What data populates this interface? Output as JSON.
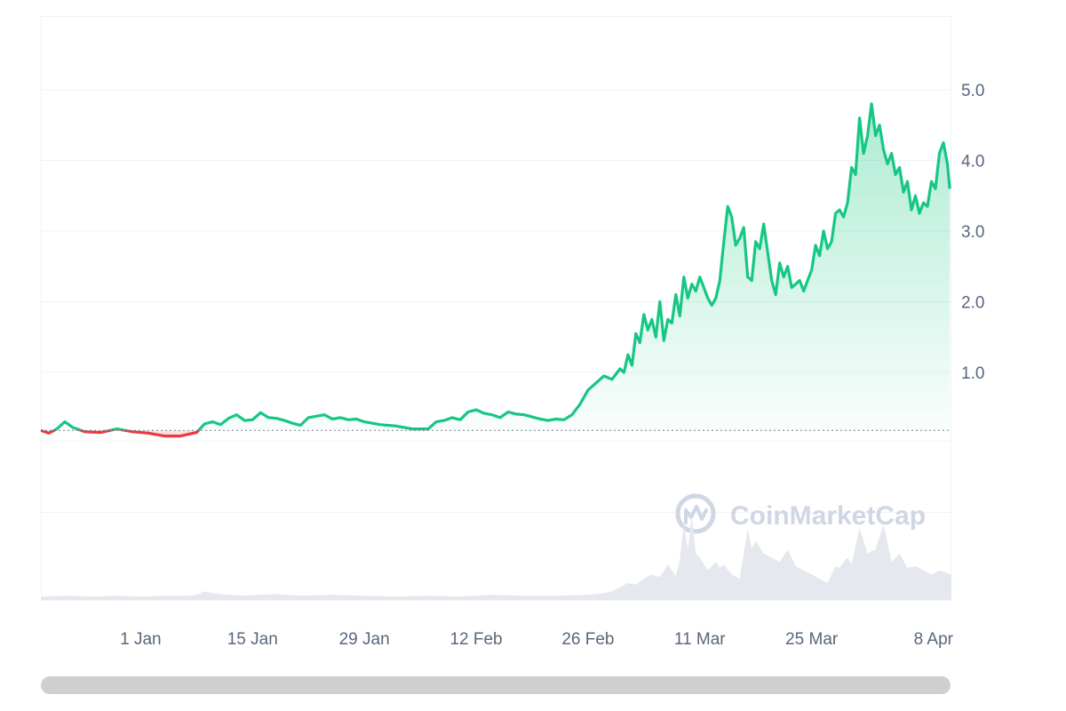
{
  "watermark": {
    "text": "CoinMarketCap",
    "icon": "coinmarketcap-logo-icon"
  },
  "colors": {
    "up": "#16c784",
    "down": "#ea3943",
    "grid": "#eff2f5",
    "baseline": "#58667e",
    "volume": "#e5e8ee",
    "tick_text": "#58667e"
  },
  "chart_data": {
    "type": "area",
    "y_ticks": [
      "1.0",
      "2.0",
      "3.0",
      "4.0",
      "5.0"
    ],
    "x_ticks": [
      "1 Jan",
      "15 Jan",
      "29 Jan",
      "12 Feb",
      "26 Feb",
      "11 Mar",
      "25 Mar",
      "8 Apr"
    ],
    "ylim": [
      -0.2,
      6.0
    ],
    "baseline": 0.18,
    "x_domain_days": [
      -12.5,
      101.5
    ],
    "y_axis_position": "right",
    "grid": "horizontal",
    "price_series": {
      "x_days": [
        -12.5,
        -11.5,
        -10.5,
        -9.5,
        -8.5,
        -7,
        -5,
        -3,
        -1,
        1,
        3,
        5,
        7,
        8,
        9,
        10,
        11,
        12,
        13,
        14,
        15,
        16,
        17,
        18,
        19,
        20,
        21,
        22,
        23,
        24,
        25,
        26,
        27,
        28,
        29,
        30,
        31,
        32,
        33,
        34,
        35,
        36,
        37,
        38,
        39,
        40,
        41,
        42,
        43,
        44,
        45,
        46,
        47,
        48,
        49,
        50,
        51,
        52,
        53,
        54,
        55,
        56,
        57,
        58,
        59,
        60,
        60.5,
        61,
        61.5,
        62,
        62.5,
        63,
        63.5,
        64,
        64.5,
        65,
        65.5,
        66,
        66.5,
        67,
        67.5,
        68,
        68.5,
        69,
        69.5,
        70,
        70.5,
        71,
        71.5,
        72,
        72.5,
        73,
        73.5,
        74,
        74.5,
        75,
        75.5,
        76,
        76.5,
        77,
        77.5,
        78,
        78.5,
        79,
        79.5,
        80,
        80.5,
        81,
        81.5,
        82,
        82.5,
        83,
        83.5,
        84,
        84.5,
        85,
        85.5,
        86,
        86.5,
        87,
        87.5,
        88,
        88.5,
        89,
        89.5,
        90,
        90.5,
        91,
        91.5,
        92,
        92.5,
        93,
        93.5,
        94,
        94.5,
        95,
        95.5,
        96,
        96.5,
        97,
        97.5,
        98,
        98.5,
        99,
        99.5,
        100,
        100.5,
        101,
        101.3
      ],
      "price": [
        0.18,
        0.14,
        0.2,
        0.3,
        0.22,
        0.16,
        0.15,
        0.2,
        0.16,
        0.14,
        0.1,
        0.1,
        0.15,
        0.27,
        0.3,
        0.26,
        0.35,
        0.4,
        0.32,
        0.33,
        0.43,
        0.36,
        0.35,
        0.32,
        0.28,
        0.25,
        0.36,
        0.38,
        0.4,
        0.34,
        0.36,
        0.33,
        0.34,
        0.3,
        0.28,
        0.26,
        0.25,
        0.24,
        0.22,
        0.2,
        0.2,
        0.2,
        0.3,
        0.32,
        0.36,
        0.33,
        0.44,
        0.47,
        0.42,
        0.4,
        0.36,
        0.44,
        0.41,
        0.4,
        0.37,
        0.34,
        0.32,
        0.34,
        0.33,
        0.4,
        0.55,
        0.75,
        0.85,
        0.95,
        0.9,
        1.05,
        1.0,
        1.25,
        1.1,
        1.55,
        1.42,
        1.82,
        1.6,
        1.75,
        1.5,
        2.0,
        1.45,
        1.75,
        1.7,
        2.1,
        1.8,
        2.35,
        2.05,
        2.25,
        2.15,
        2.35,
        2.2,
        2.05,
        1.95,
        2.05,
        2.3,
        2.85,
        3.35,
        3.2,
        2.8,
        2.9,
        3.05,
        2.35,
        2.3,
        2.85,
        2.75,
        3.1,
        2.7,
        2.3,
        2.1,
        2.55,
        2.35,
        2.5,
        2.2,
        2.25,
        2.3,
        2.15,
        2.3,
        2.45,
        2.8,
        2.65,
        3.0,
        2.75,
        2.85,
        3.25,
        3.3,
        3.2,
        3.4,
        3.9,
        3.8,
        4.6,
        4.1,
        4.35,
        4.8,
        4.35,
        4.5,
        4.15,
        3.95,
        4.1,
        3.8,
        3.9,
        3.55,
        3.7,
        3.3,
        3.5,
        3.25,
        3.4,
        3.35,
        3.7,
        3.6,
        4.1,
        4.25,
        3.95,
        3.6,
        3.5
      ]
    },
    "volume_series": {
      "x_days": [
        -12.5,
        -9,
        -6,
        -3,
        0,
        3,
        6,
        7,
        8,
        9,
        10,
        11,
        13,
        15,
        17,
        20,
        24,
        28,
        32,
        36,
        40,
        44,
        48,
        52,
        56,
        58,
        59,
        60,
        61,
        62,
        63,
        64,
        65,
        66,
        67,
        67.5,
        68,
        68.5,
        69,
        69.5,
        70,
        71,
        72,
        72.5,
        73,
        74,
        75,
        75.5,
        76,
        76.5,
        77,
        78,
        79,
        80,
        81,
        82,
        83,
        84,
        85,
        86,
        87,
        87.5,
        88,
        88.5,
        89,
        90,
        91,
        92,
        93,
        94,
        95,
        96,
        97,
        98,
        99,
        100,
        101,
        101.5
      ],
      "volume": [
        0.04,
        0.05,
        0.04,
        0.05,
        0.04,
        0.05,
        0.05,
        0.06,
        0.1,
        0.08,
        0.07,
        0.06,
        0.05,
        0.06,
        0.07,
        0.05,
        0.06,
        0.05,
        0.04,
        0.05,
        0.04,
        0.06,
        0.05,
        0.05,
        0.06,
        0.08,
        0.1,
        0.15,
        0.2,
        0.18,
        0.25,
        0.3,
        0.27,
        0.42,
        0.28,
        0.48,
        0.92,
        0.6,
        1.0,
        0.55,
        0.5,
        0.35,
        0.45,
        0.38,
        0.42,
        0.3,
        0.25,
        0.55,
        0.85,
        0.6,
        0.7,
        0.55,
        0.5,
        0.45,
        0.6,
        0.4,
        0.35,
        0.3,
        0.25,
        0.2,
        0.4,
        0.38,
        0.45,
        0.5,
        0.42,
        0.85,
        0.55,
        0.6,
        0.9,
        0.45,
        0.55,
        0.38,
        0.4,
        0.35,
        0.3,
        0.35,
        0.32,
        0.3
      ]
    }
  }
}
